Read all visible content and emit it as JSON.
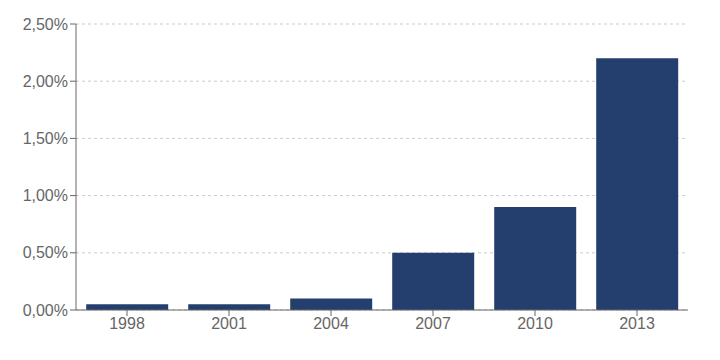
{
  "chart_data": {
    "type": "bar",
    "categories": [
      "1998",
      "2001",
      "2004",
      "2007",
      "2010",
      "2013"
    ],
    "values": [
      0.0005,
      0.0005,
      0.001,
      0.005,
      0.009,
      0.022
    ],
    "color": "#243F6E",
    "ylim": [
      0,
      0.025
    ],
    "yticks": [
      {
        "value": 0.0,
        "label": "0,00%"
      },
      {
        "value": 0.005,
        "label": "0,50%"
      },
      {
        "value": 0.01,
        "label": "1,00%"
      },
      {
        "value": 0.015,
        "label": "1,50%"
      },
      {
        "value": 0.02,
        "label": "2,00%"
      },
      {
        "value": 0.025,
        "label": "2,50%"
      }
    ],
    "grid": true
  }
}
